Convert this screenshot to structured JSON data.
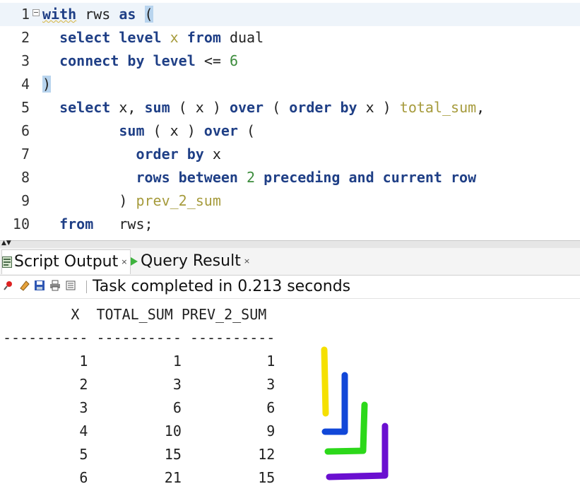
{
  "editor": {
    "line_numbers": [
      "1",
      "2",
      "3",
      "4",
      "5",
      "6",
      "7",
      "8",
      "9",
      "10"
    ],
    "lines": [
      [
        {
          "t": "with",
          "c": "kw wavy"
        },
        {
          "t": " rws ",
          "c": ""
        },
        {
          "t": "as",
          "c": "kw"
        },
        {
          "t": " ",
          "c": ""
        },
        {
          "t": "(",
          "c": "paren-hl"
        }
      ],
      [
        {
          "t": "  ",
          "c": ""
        },
        {
          "t": "select",
          "c": "kw"
        },
        {
          "t": " ",
          "c": ""
        },
        {
          "t": "level",
          "c": "kw"
        },
        {
          "t": " ",
          "c": ""
        },
        {
          "t": "x",
          "c": "alias"
        },
        {
          "t": " ",
          "c": ""
        },
        {
          "t": "from",
          "c": "kw"
        },
        {
          "t": " dual",
          "c": ""
        }
      ],
      [
        {
          "t": "  ",
          "c": ""
        },
        {
          "t": "connect by",
          "c": "kw"
        },
        {
          "t": " ",
          "c": ""
        },
        {
          "t": "level",
          "c": "kw"
        },
        {
          "t": " <= ",
          "c": ""
        },
        {
          "t": "6",
          "c": "num"
        }
      ],
      [
        {
          "t": ")",
          "c": "paren-hl"
        }
      ],
      [
        {
          "t": "  ",
          "c": ""
        },
        {
          "t": "select",
          "c": "kw"
        },
        {
          "t": " x, ",
          "c": ""
        },
        {
          "t": "sum",
          "c": "kw"
        },
        {
          "t": " ( x ) ",
          "c": ""
        },
        {
          "t": "over",
          "c": "kw"
        },
        {
          "t": " ( ",
          "c": ""
        },
        {
          "t": "order by",
          "c": "kw"
        },
        {
          "t": " x ) ",
          "c": ""
        },
        {
          "t": "total_sum",
          "c": "alias"
        },
        {
          "t": ",",
          "c": ""
        }
      ],
      [
        {
          "t": "         ",
          "c": ""
        },
        {
          "t": "sum",
          "c": "kw"
        },
        {
          "t": " ( x ) ",
          "c": ""
        },
        {
          "t": "over",
          "c": "kw"
        },
        {
          "t": " (",
          "c": ""
        }
      ],
      [
        {
          "t": "           ",
          "c": ""
        },
        {
          "t": "order by",
          "c": "kw"
        },
        {
          "t": " x",
          "c": ""
        }
      ],
      [
        {
          "t": "           ",
          "c": ""
        },
        {
          "t": "rows between",
          "c": "kw"
        },
        {
          "t": " ",
          "c": ""
        },
        {
          "t": "2",
          "c": "num"
        },
        {
          "t": " ",
          "c": ""
        },
        {
          "t": "preceding and current row",
          "c": "kw"
        }
      ],
      [
        {
          "t": "         ) ",
          "c": ""
        },
        {
          "t": "prev_2_sum",
          "c": "alias"
        }
      ],
      [
        {
          "t": "  ",
          "c": ""
        },
        {
          "t": "from",
          "c": "kw"
        },
        {
          "t": "   rws;",
          "c": ""
        }
      ]
    ]
  },
  "tabs": {
    "script_output": "Script Output",
    "query_result": "Query Result",
    "close": "×"
  },
  "toolbar": {
    "status": "Task completed in 0.213 seconds"
  },
  "output": {
    "header": "        X  TOTAL_SUM PREV_2_SUM",
    "divider": "---------- ---------- ----------",
    "rows": [
      "         1          1          1",
      "         2          3          3",
      "         3          6          6",
      "         4         10          9",
      "         5         15         12",
      "         6         21         15"
    ]
  },
  "annotation_colors": [
    "#f5e000",
    "#1147d8",
    "#2cd81a",
    "#6a0fd0"
  ],
  "icons": [
    "pin-icon",
    "eraser-icon",
    "save-icon",
    "print-icon",
    "clear-icon",
    "run-script-icon",
    "run-query-icon"
  ]
}
